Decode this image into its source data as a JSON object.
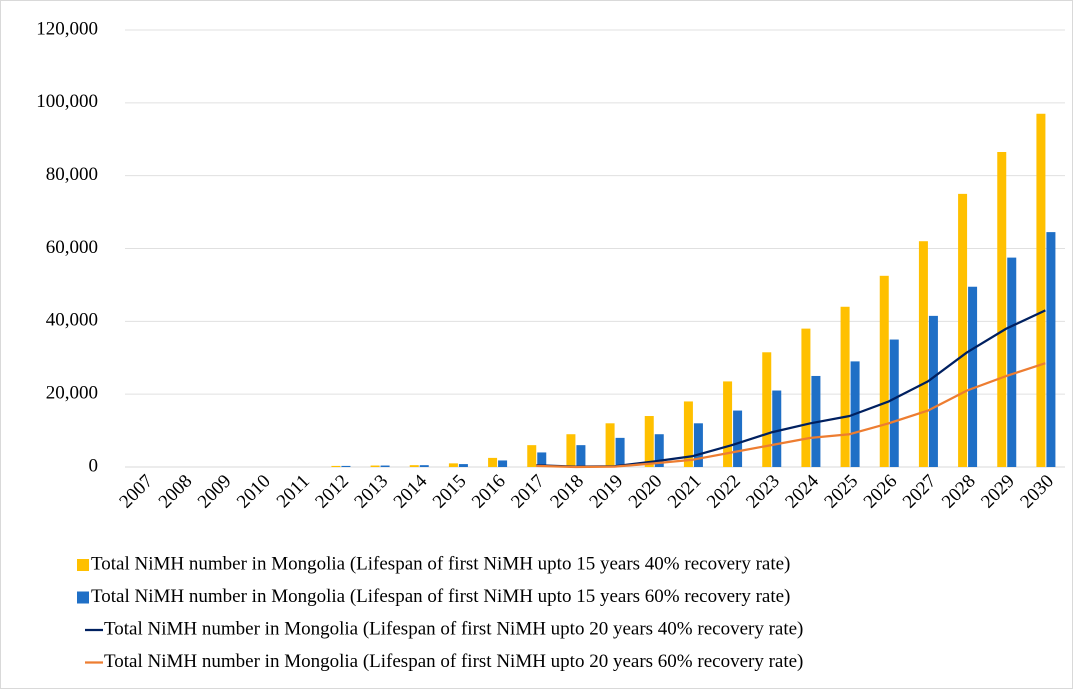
{
  "chart_data": {
    "type": "bar",
    "categories": [
      "2007",
      "2008",
      "2009",
      "2010",
      "2011",
      "2012",
      "2013",
      "2014",
      "2015",
      "2016",
      "2017",
      "2018",
      "2019",
      "2020",
      "2021",
      "2022",
      "2023",
      "2024",
      "2025",
      "2026",
      "2027",
      "2028",
      "2029",
      "2030"
    ],
    "series": [
      {
        "name": "Total NiMH number in Mongolia (Lifespan of first NiMH upto 15 years 40% recovery rate)",
        "type": "bar",
        "color": "#FFC000",
        "values": [
          0,
          0,
          0,
          0,
          0,
          300,
          400,
          500,
          1000,
          2500,
          6000,
          9000,
          12000,
          14000,
          18000,
          23500,
          31500,
          38000,
          44000,
          52500,
          62000,
          75000,
          86500,
          97000
        ]
      },
      {
        "name": "Total NiMH number in Mongolia (Lifespan of first NiMH upto 15 years 60% recovery rate)",
        "type": "bar",
        "color": "#1F6FC6",
        "values": [
          0,
          0,
          0,
          0,
          0,
          300,
          400,
          500,
          800,
          1800,
          4000,
          6000,
          8000,
          9000,
          12000,
          15500,
          21000,
          25000,
          29000,
          35000,
          41500,
          49500,
          57500,
          64500
        ]
      },
      {
        "name": "Total NiMH number in Mongolia (Lifespan of first NiMH upto 20 years 40% recovery rate)",
        "type": "line",
        "color": "#002060",
        "values": [
          null,
          null,
          null,
          null,
          null,
          null,
          null,
          null,
          null,
          null,
          500,
          100,
          200,
          1500,
          3000,
          6000,
          9500,
          12000,
          14000,
          18000,
          23500,
          31500,
          38000,
          43000
        ]
      },
      {
        "name": "Total NiMH number in Mongolia (Lifespan of first NiMH upto 20 years 60% recovery rate)",
        "type": "line",
        "color": "#ED7D31",
        "values": [
          null,
          null,
          null,
          null,
          null,
          null,
          null,
          null,
          null,
          null,
          300,
          0,
          100,
          1000,
          2000,
          4000,
          6000,
          8000,
          9000,
          12000,
          15500,
          21000,
          25000,
          28500
        ]
      }
    ],
    "ylim": [
      0,
      120000
    ],
    "yticks": [
      0,
      {
        "value": 20000,
        "label": "20,000"
      },
      {
        "value": 40000,
        "label": "40,000"
      },
      {
        "value": 60000,
        "label": "60,000"
      },
      {
        "value": 80000,
        "label": "80,000"
      },
      {
        "value": 100000,
        "label": "100,000"
      },
      {
        "value": 120000,
        "label": "120,000"
      }
    ],
    "grid": true
  }
}
